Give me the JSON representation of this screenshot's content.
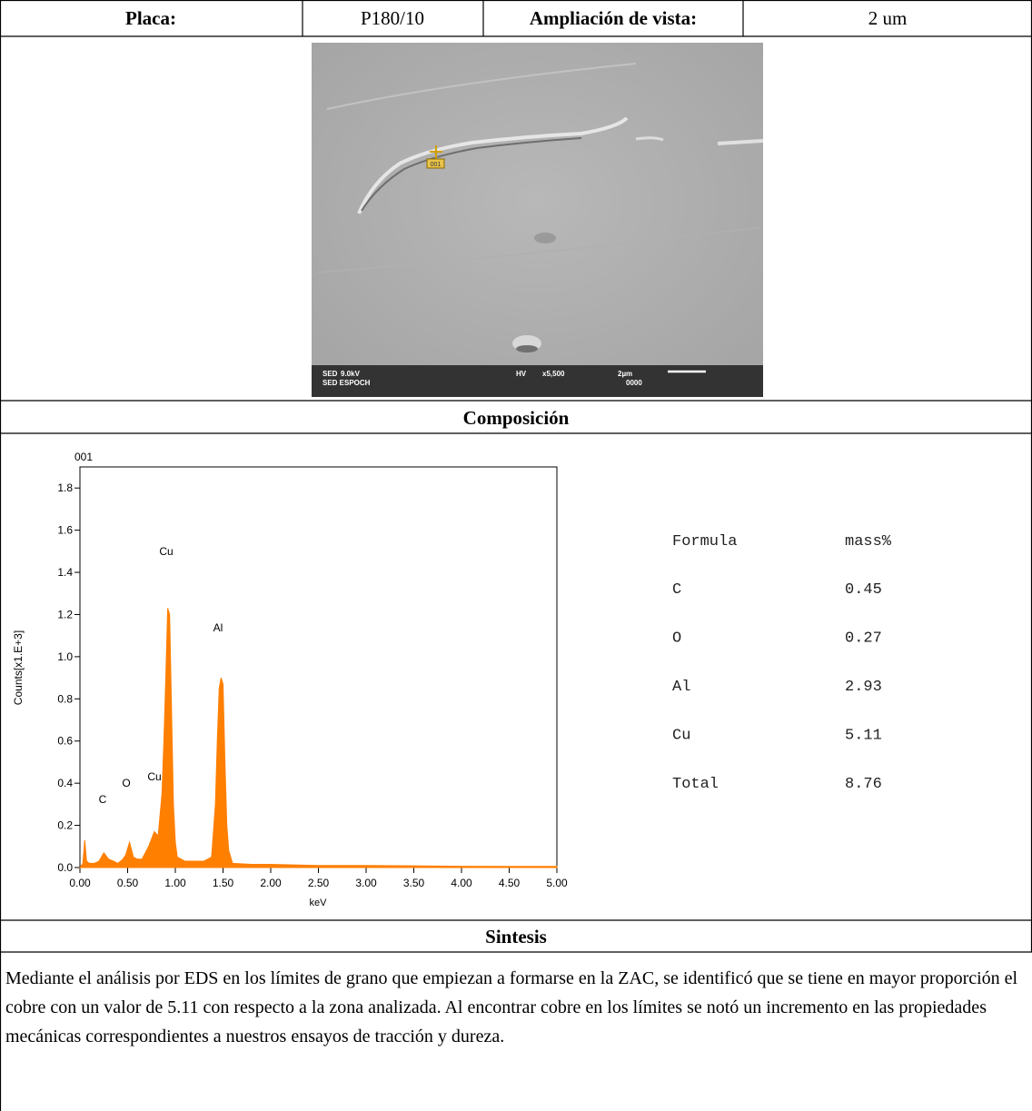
{
  "header": {
    "plate_label": "Placa:",
    "plate": "P180/10",
    "zoom_label": "Ampliación de vista:",
    "zoom": "2 um"
  },
  "image": {
    "marker": "001",
    "caption": [
      "SED",
      "9.0kV",
      "SED ESPOCH",
      "HV",
      "x5,500",
      "2µm",
      "0000"
    ]
  },
  "composition_title": "Composición",
  "chart_data": {
    "type": "area",
    "title": "001",
    "x_label": "keV",
    "y_label": "Counts[x1.E+3]",
    "color": "#FF7F00",
    "x": [
      0.0,
      0.03,
      0.05,
      0.07,
      0.1,
      0.15,
      0.2,
      0.25,
      0.3,
      0.35,
      0.4,
      0.45,
      0.48,
      0.52,
      0.56,
      0.6,
      0.65,
      0.72,
      0.78,
      0.82,
      0.86,
      0.88,
      0.9,
      0.92,
      0.94,
      0.96,
      0.98,
      1.0,
      1.02,
      1.1,
      1.2,
      1.3,
      1.38,
      1.42,
      1.44,
      1.46,
      1.48,
      1.5,
      1.52,
      1.54,
      1.56,
      1.6,
      1.8,
      2.0,
      2.5,
      3.0,
      3.5,
      4.0,
      4.5,
      5.0
    ],
    "values": [
      0.0,
      0.02,
      0.13,
      0.03,
      0.02,
      0.02,
      0.03,
      0.07,
      0.04,
      0.03,
      0.02,
      0.04,
      0.06,
      0.12,
      0.05,
      0.04,
      0.04,
      0.1,
      0.17,
      0.15,
      0.35,
      0.6,
      0.9,
      1.23,
      1.2,
      0.75,
      0.3,
      0.12,
      0.05,
      0.03,
      0.03,
      0.03,
      0.05,
      0.3,
      0.6,
      0.85,
      0.9,
      0.87,
      0.5,
      0.2,
      0.08,
      0.02,
      0.015,
      0.015,
      0.01,
      0.01,
      0.008,
      0.006,
      0.005,
      0.005
    ],
    "xlim": [
      0,
      5
    ],
    "ylim": [
      0,
      1.9
    ],
    "xticks": [
      {
        "value": 0,
        "label": "0.00"
      },
      {
        "value": 0.5,
        "label": "0.50"
      },
      {
        "value": 1,
        "label": "1.00"
      },
      {
        "value": 1.5,
        "label": "1.50"
      },
      {
        "value": 2,
        "label": "2.00"
      },
      {
        "value": 2.5,
        "label": "2.50"
      },
      {
        "value": 3,
        "label": "3.00"
      },
      {
        "value": 3.5,
        "label": "3.50"
      },
      {
        "value": 4,
        "label": "4.00"
      },
      {
        "value": 4.5,
        "label": "4.50"
      },
      {
        "value": 5,
        "label": "5.00"
      }
    ],
    "yticks": [
      {
        "value": 0,
        "label": "0.0"
      },
      {
        "value": 0.2,
        "label": "0.2"
      },
      {
        "value": 0.4,
        "label": "0.4"
      },
      {
        "value": 0.6,
        "label": "0.6"
      },
      {
        "value": 0.8,
        "label": "0.8"
      },
      {
        "value": 1,
        "label": "1.0"
      },
      {
        "value": 1.2,
        "label": "1.2"
      },
      {
        "value": 1.4,
        "label": "1.4"
      },
      {
        "value": 1.6,
        "label": "1.6"
      },
      {
        "value": 1.8,
        "label": "1.8"
      }
    ],
    "annotations": [
      "C",
      "O",
      "Cu",
      "Cu",
      "Al"
    ]
  },
  "table": {
    "header": [
      "Formula",
      "mass%"
    ],
    "rows": [
      [
        "C",
        0.45
      ],
      [
        "O",
        0.27
      ],
      [
        "Al",
        2.93
      ],
      [
        "Cu",
        5.11
      ],
      [
        "Total",
        8.76
      ]
    ]
  },
  "synthesis": {
    "title": "Sintesis",
    "text": "Mediante el análisis por EDS en los límites de grano que empiezan a formarse en la ZAC, se identificó que se tiene en mayor proporción el cobre con un valor de 5.11 con respecto a la zona analizada. Al encontrar cobre en los límites se notó un incremento en las propiedades mecánicas correspondientes a nuestros ensayos de tracción y dureza."
  }
}
